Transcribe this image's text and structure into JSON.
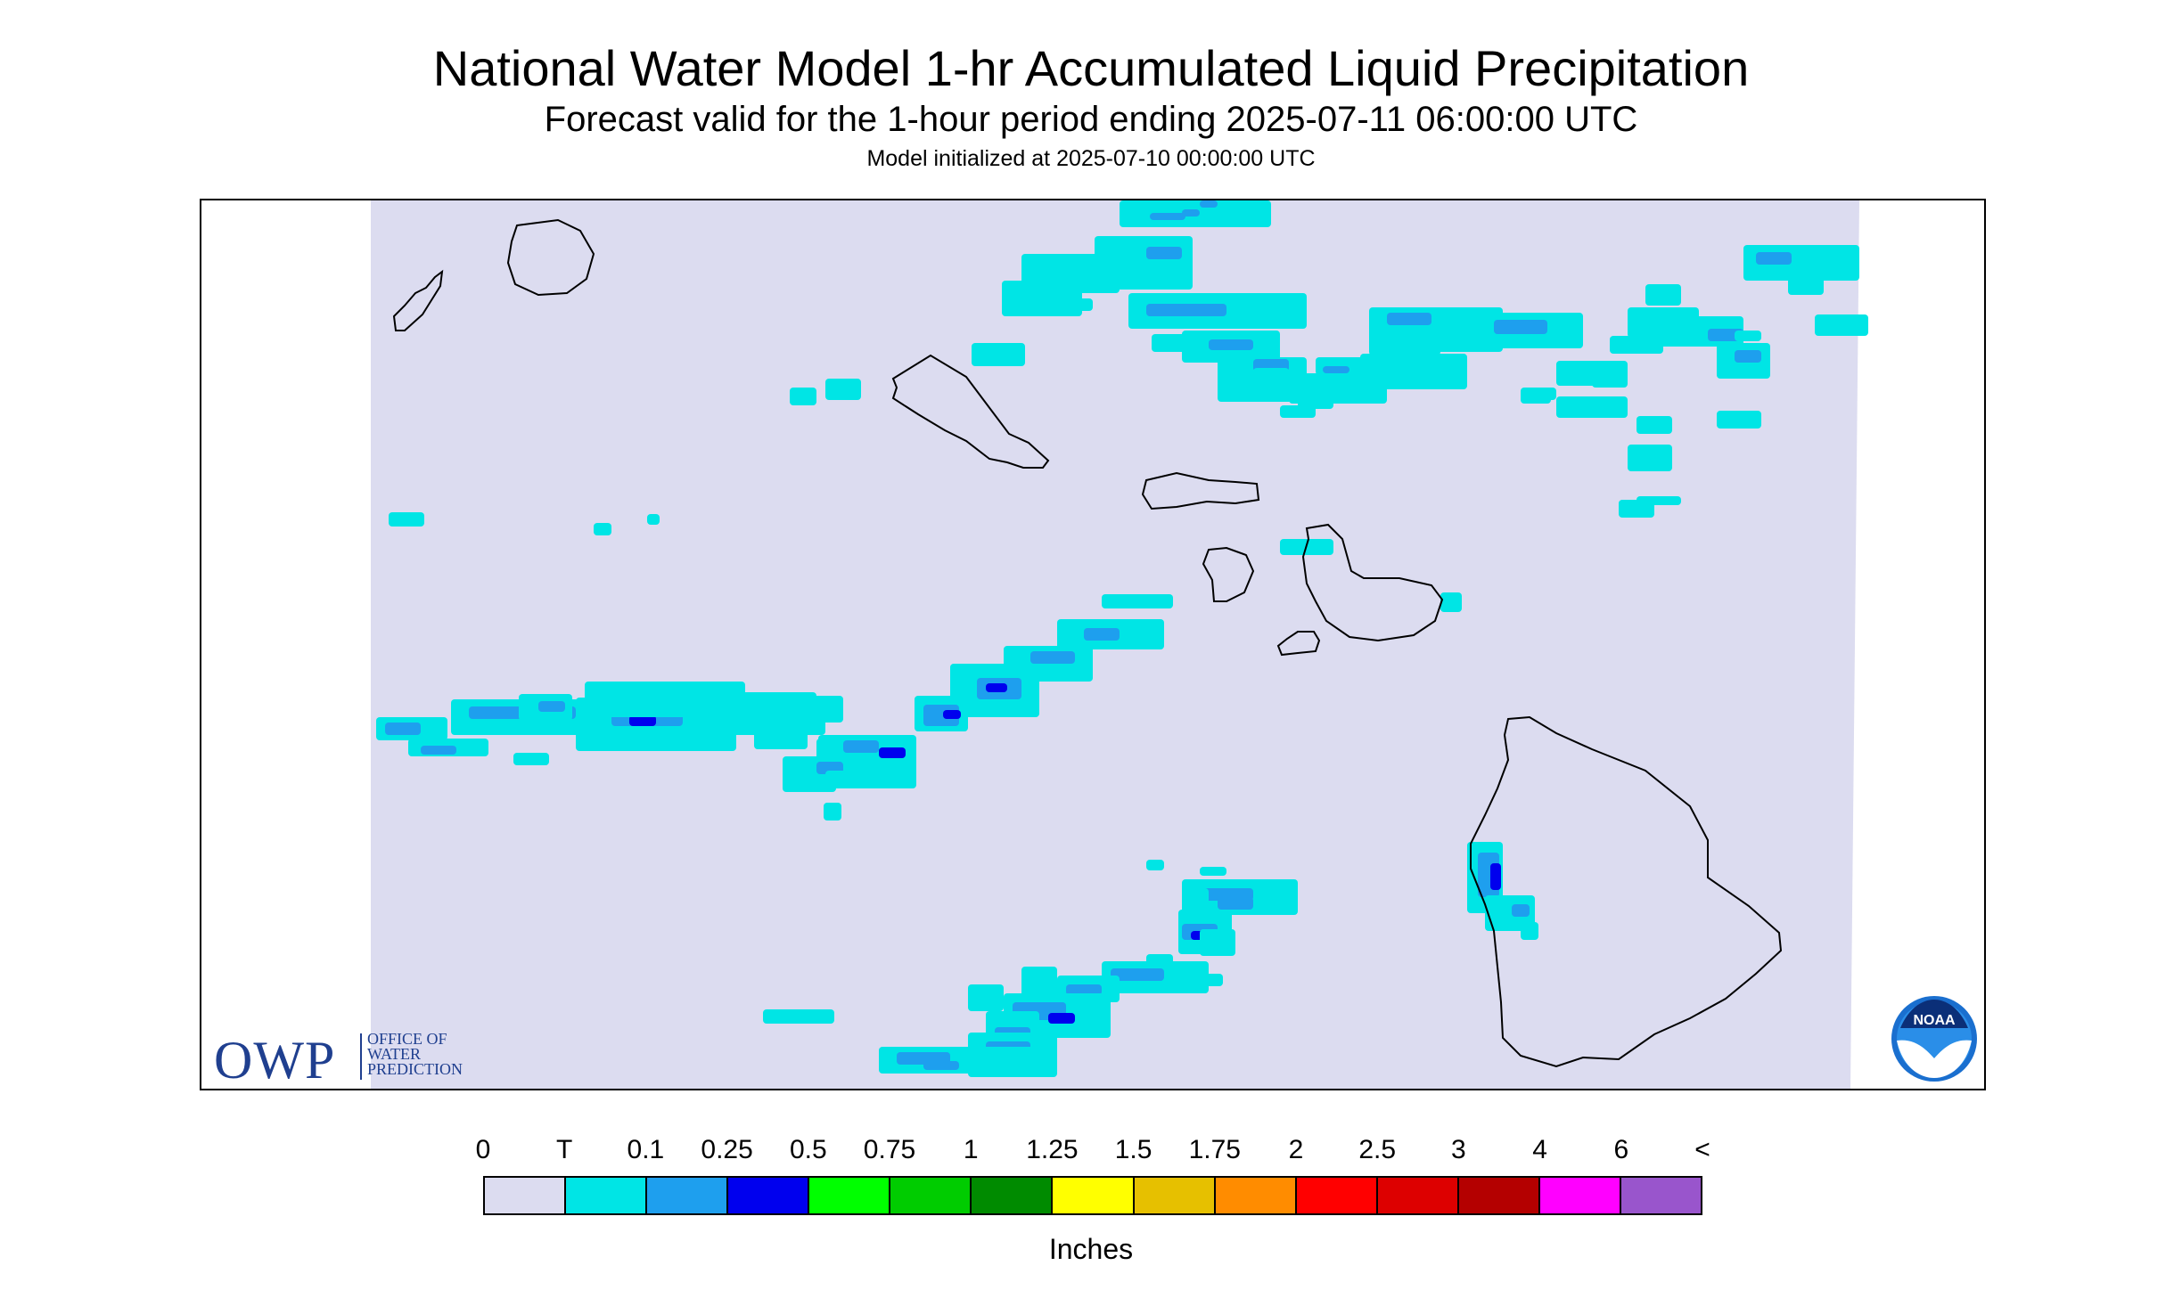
{
  "title": "National Water Model 1-hr Accumulated Liquid Precipitation",
  "subtitle": "Forecast valid for the 1-hour period ending 2025-07-11 06:00:00 UTC",
  "init_line": "Model initialized at 2025-07-10 00:00:00 UTC",
  "logos": {
    "owp_letters": "OWP",
    "owp_lines": [
      "OFFICE OF",
      "WATER",
      "PREDICTION"
    ],
    "noaa_text": "NOAA"
  },
  "colors": {
    "background": "#dcdcf0",
    "trace": "#00e5e5",
    "t01": "#1e9fee",
    "t025": "#0000ee",
    "coast": "#000000"
  },
  "legend": {
    "unit": "Inches",
    "ticks": [
      "0",
      "T",
      "0.1",
      "0.25",
      "0.5",
      "0.75",
      "1",
      "1.25",
      "1.5",
      "1.75",
      "2",
      "2.5",
      "3",
      "4",
      "6",
      "<"
    ],
    "colors": [
      "#dcdcf0",
      "#00e5e5",
      "#1e9fee",
      "#0000ee",
      "#00ff00",
      "#00cc00",
      "#008b00",
      "#ffff00",
      "#e6c000",
      "#ff8c00",
      "#ff0000",
      "#dd0000",
      "#b40000",
      "#ff00ff",
      "#9955cc"
    ]
  }
}
